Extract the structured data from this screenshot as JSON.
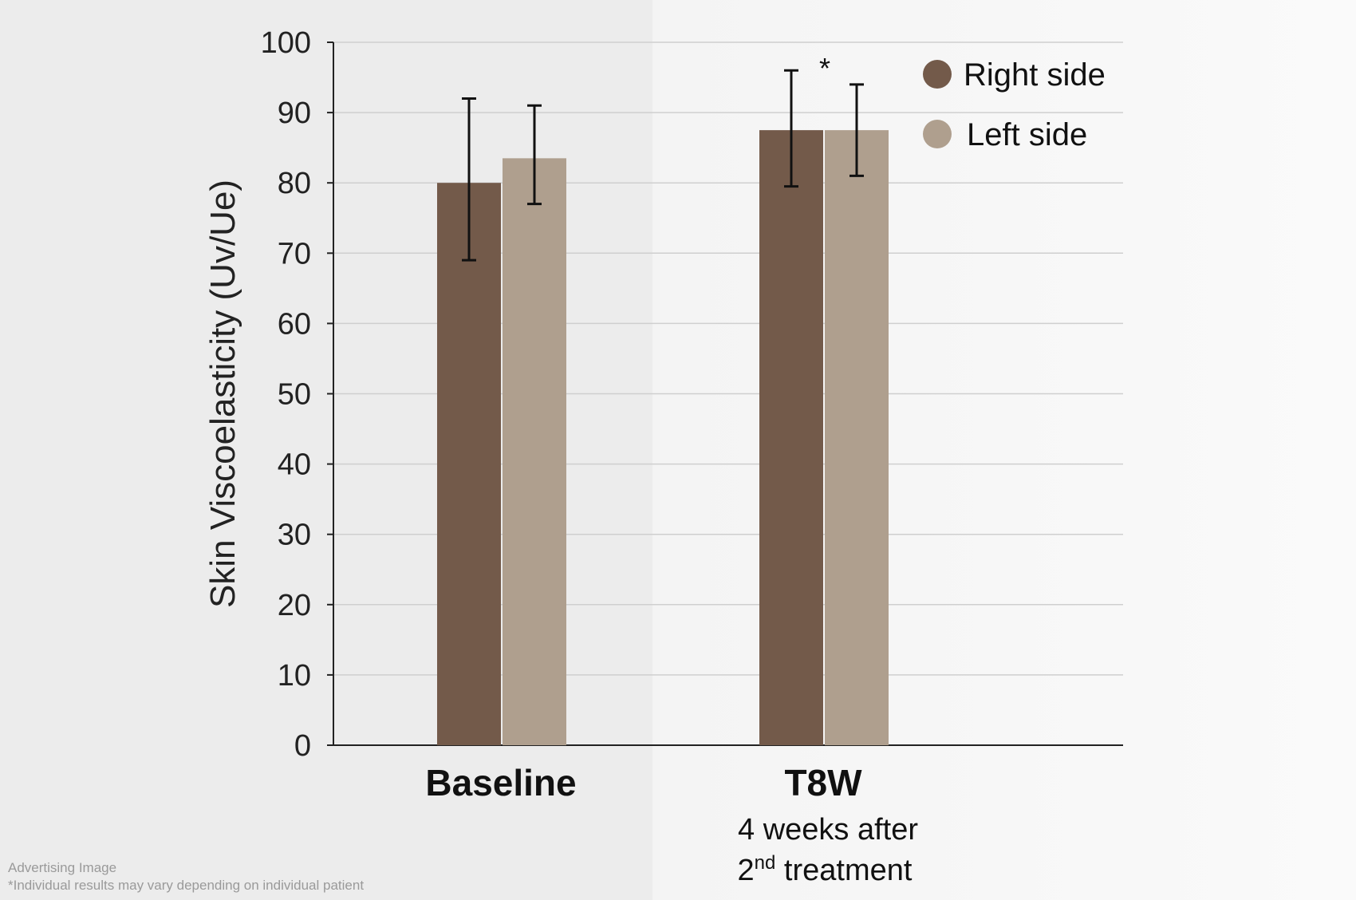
{
  "chart_data": {
    "type": "bar",
    "categories": [
      "Baseline",
      "T8W"
    ],
    "category_sublabels": [
      "",
      "4 weeks after"
    ],
    "category_sublabel_line2": {
      "base": "2",
      "sup": "nd",
      "rest": " treatment"
    },
    "ylabel": "Skin Viscoelasticity (Uv/Ue)",
    "xlabel": "",
    "ylim": [
      0,
      100
    ],
    "yticks": [
      0,
      10,
      20,
      30,
      40,
      50,
      60,
      70,
      80,
      90,
      100
    ],
    "grid": true,
    "legend_position": "top-right",
    "series": [
      {
        "name": "Right side",
        "color": "#735a4a",
        "values": [
          80,
          87.5
        ],
        "error_low": [
          69,
          79.5
        ],
        "error_high": [
          92,
          96
        ]
      },
      {
        "name": "Left side",
        "color": "#af9f8e",
        "values": [
          83.5,
          87.5
        ],
        "error_low": [
          77,
          81
        ],
        "error_high": [
          91,
          94
        ]
      }
    ],
    "annotations": [
      {
        "category": "T8W",
        "text": "*"
      }
    ]
  },
  "footer": {
    "line1": "Advertising Image",
    "line2": "*Individual results may vary depending on individual patient"
  }
}
